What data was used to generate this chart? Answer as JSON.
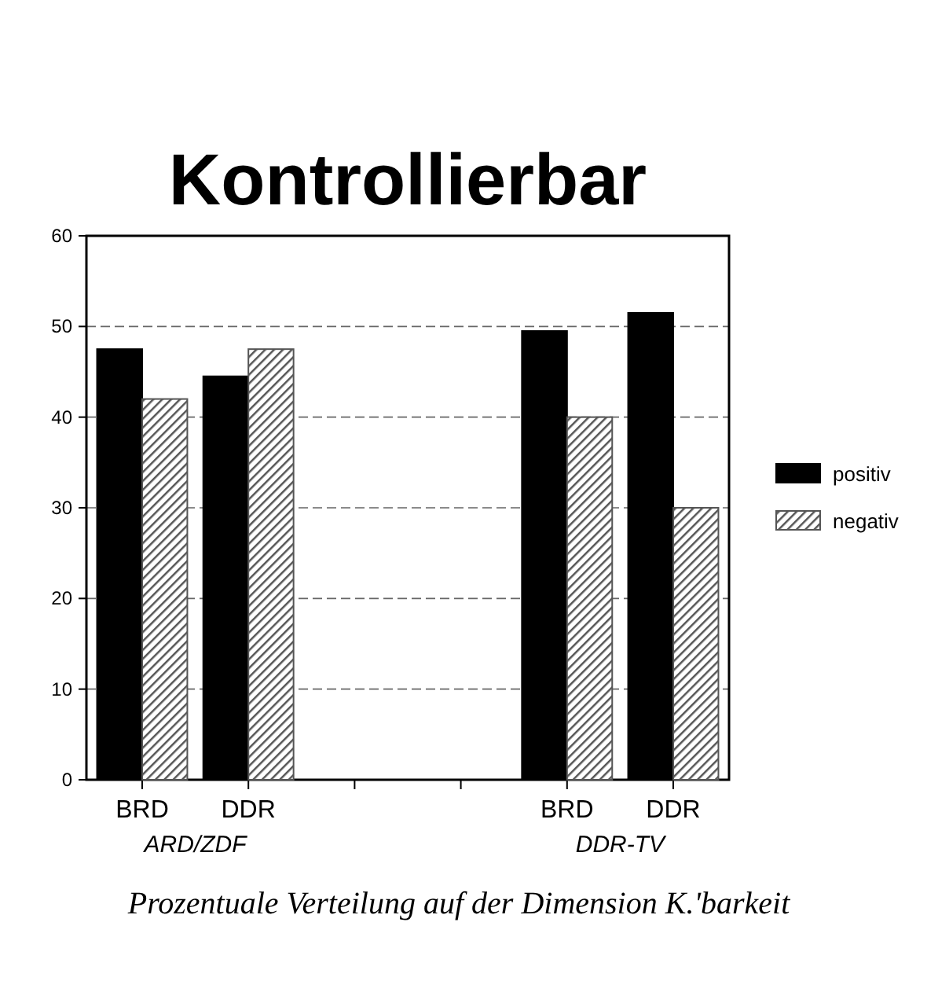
{
  "chart_data": {
    "type": "bar",
    "title": "Kontrollierbar",
    "categories": [
      "BRD",
      "DDR",
      null,
      null,
      "BRD",
      "DDR"
    ],
    "series": [
      {
        "name": "positiv",
        "color": "#000000",
        "values": [
          47.5,
          44.5,
          null,
          null,
          49.5,
          51.5
        ]
      },
      {
        "name": "negativ",
        "color": "#555555",
        "values": [
          42,
          47.5,
          null,
          null,
          40,
          30
        ]
      }
    ],
    "ylim": [
      0,
      60
    ],
    "yticks": [
      0,
      10,
      20,
      30,
      40,
      50,
      60
    ],
    "grid": "y",
    "legend": "right",
    "annotations": [
      "ARD/ZDF",
      "DDR-TV",
      "Prozentuale Verteilung auf der Dimension K.'barkeit"
    ]
  }
}
